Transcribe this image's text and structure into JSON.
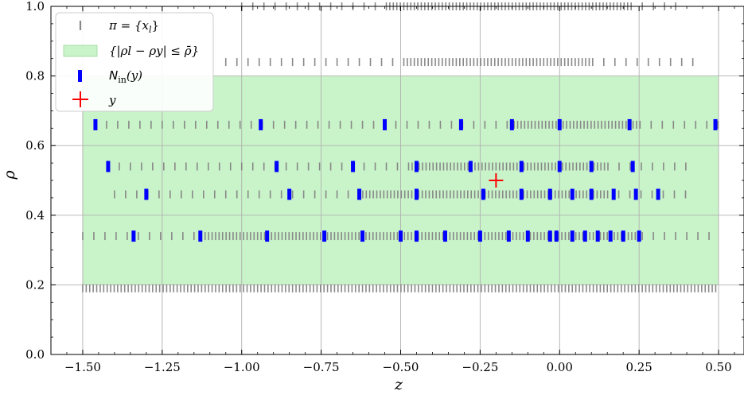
{
  "chart_data": {
    "type": "scatter",
    "title": "",
    "xlabel": "z",
    "ylabel": "ρ",
    "xlim": [
      -1.6,
      0.58
    ],
    "ylim": [
      0.0,
      1.0
    ],
    "xticks": [
      -1.5,
      -1.25,
      -1.0,
      -0.75,
      -0.5,
      -0.25,
      0.0,
      0.25,
      0.5
    ],
    "xtick_labels": [
      "−1.50",
      "−1.25",
      "−1.00",
      "−0.75",
      "−0.50",
      "−0.25",
      "0.00",
      "0.25",
      "0.50"
    ],
    "yticks": [
      0.0,
      0.2,
      0.4,
      0.6,
      0.8,
      1.0
    ],
    "ytick_labels": [
      "0.0",
      "0.2",
      "0.4",
      "0.6",
      "0.8",
      "1.0"
    ],
    "grid": true,
    "legend_position": "top-left",
    "legend": [
      {
        "key": "grid",
        "label_main": "π = {x",
        "label_sub": "l",
        "label_tail": "}"
      },
      {
        "key": "band",
        "label": "{|ρl − ρy| ≤ ρ̄}"
      },
      {
        "key": "neighbors",
        "label_main": "N",
        "label_sub": "in",
        "label_tail": "(y)"
      },
      {
        "key": "query",
        "label": "y"
      }
    ],
    "band": {
      "x_range": [
        -1.5,
        0.5
      ],
      "y_range": [
        0.2,
        0.8
      ],
      "color": "#c9f4c9"
    },
    "query_point": {
      "x": -0.2,
      "y": 0.5,
      "color": "#ff0000"
    },
    "grid_points": {
      "color": "#888888",
      "rows": [
        {
          "rho": 1.0,
          "z_min": -1.0,
          "z_max": 0.38,
          "n": 60,
          "dense_range": [
            -0.55,
            0.22
          ]
        },
        {
          "rho": 0.84,
          "z_min": -1.05,
          "z_max": 0.45,
          "n": 50,
          "dense_range": [
            -0.5,
            0.1
          ]
        },
        {
          "rho": 0.66,
          "z_min": -1.46,
          "z_max": 0.5,
          "n": 60,
          "dense_range": [
            -0.2,
            0.25
          ]
        },
        {
          "rho": 0.54,
          "z_min": -1.42,
          "z_max": 0.4,
          "n": 60,
          "dense_range": [
            -0.5,
            0.15
          ]
        },
        {
          "rho": 0.46,
          "z_min": -1.4,
          "z_max": 0.4,
          "n": 80,
          "dense_range": [
            -0.65,
            0.15
          ]
        },
        {
          "rho": 0.34,
          "z_min": -1.5,
          "z_max": 0.5,
          "n": 110,
          "dense_range": [
            -1.15,
            0.25
          ]
        },
        {
          "rho": 0.19,
          "z_min": -1.5,
          "z_max": 0.5,
          "n": 60,
          "dense_range": [
            -1.5,
            0.5
          ]
        }
      ]
    },
    "neighbors": {
      "color": "#0000ff",
      "points": [
        {
          "x": -1.46,
          "y": 0.66
        },
        {
          "x": -0.94,
          "y": 0.66
        },
        {
          "x": -0.55,
          "y": 0.66
        },
        {
          "x": -0.31,
          "y": 0.66
        },
        {
          "x": -0.15,
          "y": 0.66
        },
        {
          "x": 0.0,
          "y": 0.66
        },
        {
          "x": 0.22,
          "y": 0.66
        },
        {
          "x": 0.49,
          "y": 0.66
        },
        {
          "x": -1.42,
          "y": 0.54
        },
        {
          "x": -0.89,
          "y": 0.54
        },
        {
          "x": -0.65,
          "y": 0.54
        },
        {
          "x": -0.45,
          "y": 0.54
        },
        {
          "x": -0.28,
          "y": 0.54
        },
        {
          "x": -0.12,
          "y": 0.54
        },
        {
          "x": 0.0,
          "y": 0.54
        },
        {
          "x": 0.1,
          "y": 0.54
        },
        {
          "x": 0.23,
          "y": 0.54
        },
        {
          "x": -1.3,
          "y": 0.46
        },
        {
          "x": -0.85,
          "y": 0.46
        },
        {
          "x": -0.63,
          "y": 0.46
        },
        {
          "x": -0.45,
          "y": 0.46
        },
        {
          "x": -0.24,
          "y": 0.46
        },
        {
          "x": -0.12,
          "y": 0.46
        },
        {
          "x": -0.03,
          "y": 0.46
        },
        {
          "x": 0.04,
          "y": 0.46
        },
        {
          "x": 0.1,
          "y": 0.46
        },
        {
          "x": 0.17,
          "y": 0.46
        },
        {
          "x": 0.24,
          "y": 0.46
        },
        {
          "x": 0.31,
          "y": 0.46
        },
        {
          "x": -1.34,
          "y": 0.34
        },
        {
          "x": -1.13,
          "y": 0.34
        },
        {
          "x": -0.92,
          "y": 0.34
        },
        {
          "x": -0.74,
          "y": 0.34
        },
        {
          "x": -0.62,
          "y": 0.34
        },
        {
          "x": -0.5,
          "y": 0.34
        },
        {
          "x": -0.45,
          "y": 0.34
        },
        {
          "x": -0.36,
          "y": 0.34
        },
        {
          "x": -0.25,
          "y": 0.34
        },
        {
          "x": -0.16,
          "y": 0.34
        },
        {
          "x": -0.1,
          "y": 0.34
        },
        {
          "x": -0.03,
          "y": 0.34
        },
        {
          "x": -0.01,
          "y": 0.34
        },
        {
          "x": 0.04,
          "y": 0.34
        },
        {
          "x": 0.08,
          "y": 0.34
        },
        {
          "x": 0.12,
          "y": 0.34
        },
        {
          "x": 0.16,
          "y": 0.34
        },
        {
          "x": 0.2,
          "y": 0.34
        },
        {
          "x": 0.25,
          "y": 0.34
        }
      ]
    }
  }
}
